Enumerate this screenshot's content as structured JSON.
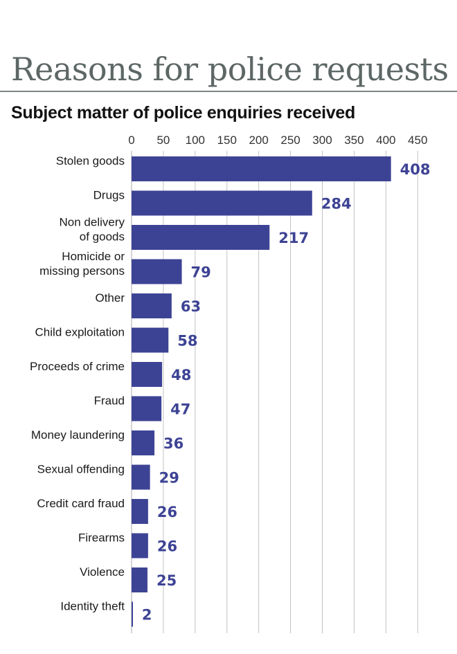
{
  "title": "Reasons for police requests",
  "subtitle": "Subject matter of police enquiries received",
  "colors": {
    "bar": "#3d4394",
    "value_label": "#3d4394",
    "grid": "#c2c2c2",
    "title": "#5d6766"
  },
  "chart_data": {
    "type": "bar",
    "orientation": "horizontal",
    "title": "",
    "xlabel": "",
    "ylabel": "",
    "xlim": [
      0,
      450
    ],
    "ticks": [
      0,
      50,
      100,
      150,
      200,
      250,
      300,
      350,
      400,
      450
    ],
    "tick_position": "top",
    "grid": true,
    "data_labels": true,
    "categories": [
      [
        "Stolen goods"
      ],
      [
        "Drugs"
      ],
      [
        "Non delivery",
        "of goods"
      ],
      [
        "Homicide or",
        "missing persons"
      ],
      [
        "Other"
      ],
      [
        "Child exploitation"
      ],
      [
        "Proceeds of crime"
      ],
      [
        "Fraud"
      ],
      [
        "Money laundering"
      ],
      [
        "Sexual offending"
      ],
      [
        "Credit card fraud"
      ],
      [
        "Firearms"
      ],
      [
        "Violence"
      ],
      [
        "Identity theft"
      ]
    ],
    "values": [
      408,
      284,
      217,
      79,
      63,
      58,
      48,
      47,
      36,
      29,
      26,
      26,
      25,
      2
    ]
  }
}
